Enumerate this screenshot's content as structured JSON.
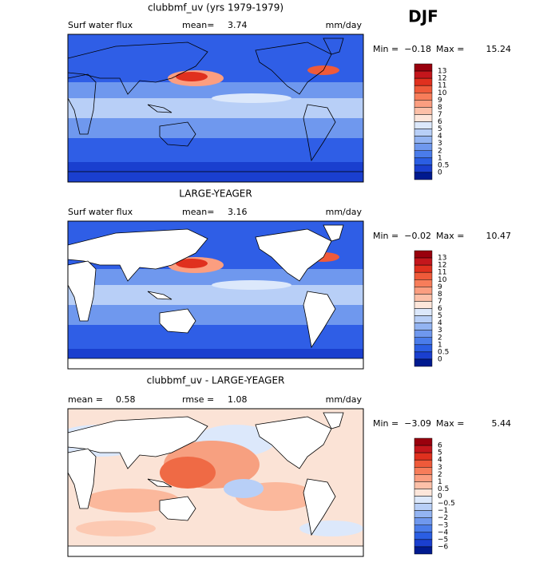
{
  "season": "DJF",
  "panels": [
    {
      "title": "clubbmf_uv (yrs 1979-1979)",
      "variable": "Surf water flux",
      "stat1_label": "mean=",
      "stat1_value": "3.74",
      "units": "mm/day",
      "min_label": "Min =",
      "min": "−0.18",
      "max_label": "Max =",
      "max": "15.24",
      "land": "outline",
      "colorbar": {
        "levels": [
          "13",
          "12",
          "11",
          "10",
          "9",
          "8",
          "7",
          "6",
          "5",
          "4",
          "3",
          "2",
          "1",
          "0.5",
          "0"
        ],
        "colors": [
          "#99000d",
          "#c4161c",
          "#e0301e",
          "#ef5a3a",
          "#f77d5a",
          "#fb9e80",
          "#fcc0a8",
          "#fde6da",
          "#dce8fb",
          "#b8cff7",
          "#93b4f2",
          "#6f98ee",
          "#4a7cea",
          "#2b5ee3",
          "#1a3fcf",
          "#001a8f"
        ]
      }
    },
    {
      "title": "LARGE-YEAGER",
      "variable": "Surf water flux",
      "stat1_label": "mean=",
      "stat1_value": "3.16",
      "units": "mm/day",
      "min_label": "Min =",
      "min": "−0.02",
      "max_label": "Max =",
      "max": "10.47",
      "land": "white",
      "colorbar": {
        "levels": [
          "13",
          "12",
          "11",
          "10",
          "9",
          "8",
          "7",
          "6",
          "5",
          "4",
          "3",
          "2",
          "1",
          "0.5",
          "0"
        ],
        "colors": [
          "#99000d",
          "#c4161c",
          "#e0301e",
          "#ef5a3a",
          "#f77d5a",
          "#fb9e80",
          "#fcc0a8",
          "#fde6da",
          "#dce8fb",
          "#b8cff7",
          "#93b4f2",
          "#6f98ee",
          "#4a7cea",
          "#2b5ee3",
          "#1a3fcf",
          "#001a8f"
        ]
      }
    },
    {
      "title": "clubbmf_uv - LARGE-YEAGER",
      "stat1_label": "mean =",
      "stat1_value": "0.58",
      "stat2_label": "rmse =",
      "stat2_value": "1.08",
      "units": "mm/day",
      "min_label": "Min =",
      "min": "−3.09",
      "max_label": "Max =",
      "max": "5.44",
      "land": "white",
      "colorbar": {
        "levels": [
          "6",
          "5",
          "4",
          "3",
          "2",
          "1",
          "0.5",
          "0",
          "−0.5",
          "−1",
          "−2",
          "−3",
          "−4",
          "−5",
          "−6"
        ],
        "colors": [
          "#99000d",
          "#c4161c",
          "#e0301e",
          "#ef5a3a",
          "#f77d5a",
          "#fb9e80",
          "#fcc0a8",
          "#fde6da",
          "#dce8fb",
          "#b8cff7",
          "#93b4f2",
          "#6f98ee",
          "#4a7cea",
          "#2b5ee3",
          "#1a3fcf",
          "#001a8f"
        ]
      }
    }
  ]
}
